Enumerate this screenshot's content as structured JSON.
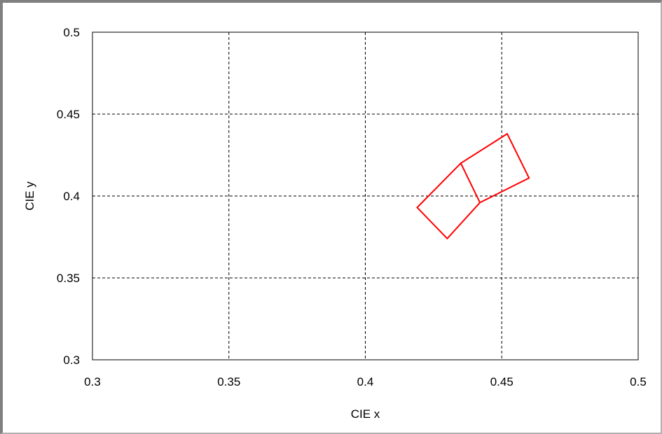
{
  "chart_data": {
    "type": "line",
    "xlabel": "CIE x",
    "ylabel": "CIE y",
    "xlim": [
      0.3,
      0.5
    ],
    "ylim": [
      0.3,
      0.5
    ],
    "x_ticks": [
      "0.3",
      "0.35",
      "0.4",
      "0.45",
      "0.5"
    ],
    "y_ticks": [
      "0.5",
      "0.45",
      "0.4",
      "0.35",
      "0.3"
    ],
    "grid": true,
    "grid_style": "dashed",
    "legend": "none",
    "series": [
      {
        "color": "#ff0000",
        "x": [
          0.435,
          0.452,
          0.46,
          0.442,
          0.435,
          0.419,
          0.43,
          0.442
        ],
        "y": [
          0.42,
          0.438,
          0.411,
          0.396,
          0.42,
          0.393,
          0.374,
          0.396
        ]
      }
    ]
  }
}
